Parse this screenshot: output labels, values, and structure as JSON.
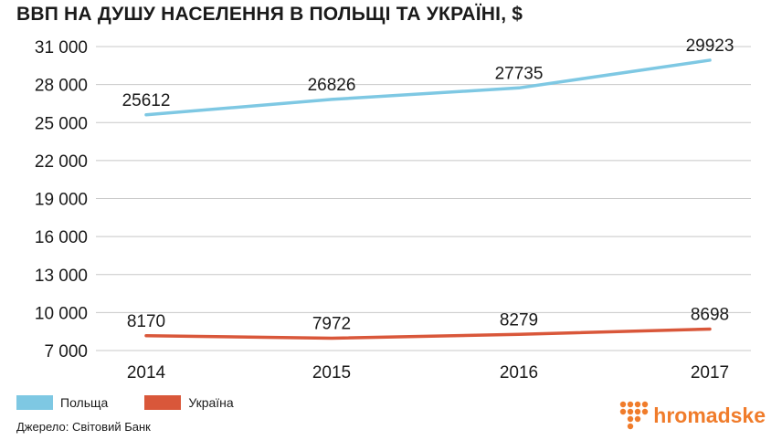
{
  "chart_data": {
    "type": "line",
    "title": "ВВП НА ДУШУ НАСЕЛЕННЯ В ПОЛЬЩІ ТА УКРАЇНІ, $",
    "categories": [
      "2014",
      "2015",
      "2016",
      "2017"
    ],
    "series": [
      {
        "name": "Польща",
        "values": [
          25612,
          26826,
          27735,
          29923
        ],
        "color": "#7ec8e3"
      },
      {
        "name": "Україна",
        "values": [
          8170,
          7972,
          8279,
          8698
        ],
        "color": "#d9573a"
      }
    ],
    "y_ticks": [
      7000,
      10000,
      13000,
      16000,
      19000,
      22000,
      25000,
      28000,
      31000
    ],
    "y_tick_labels": [
      "7 000",
      "10 000",
      "13 000",
      "16 000",
      "19 000",
      "22 000",
      "25 000",
      "28 000",
      "31 000"
    ],
    "ylim": [
      7000,
      31000
    ],
    "grid": true,
    "legend_position": "bottom-left"
  },
  "footer": {
    "source": "Джерело: Світовий Банк",
    "logo_text": "hromadske",
    "logo_color": "#f07c2b"
  }
}
